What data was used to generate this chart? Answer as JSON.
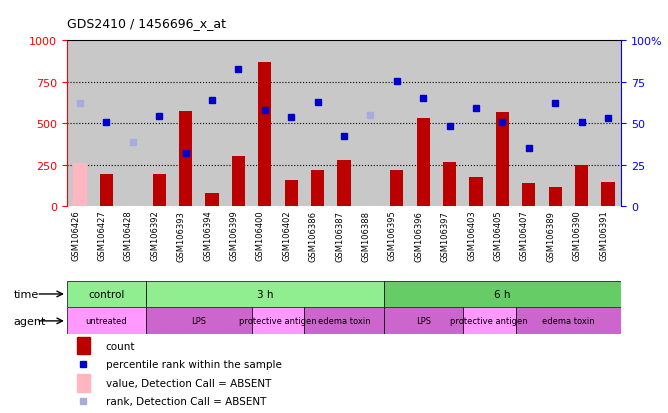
{
  "title": "GDS2410 / 1456696_x_at",
  "samples": [
    "GSM106426",
    "GSM106427",
    "GSM106428",
    "GSM106392",
    "GSM106393",
    "GSM106394",
    "GSM106399",
    "GSM106400",
    "GSM106402",
    "GSM106386",
    "GSM106387",
    "GSM106388",
    "GSM106395",
    "GSM106396",
    "GSM106397",
    "GSM106403",
    "GSM106405",
    "GSM106407",
    "GSM106389",
    "GSM106390",
    "GSM106391"
  ],
  "count_values": [
    260,
    195,
    0,
    195,
    575,
    80,
    300,
    870,
    160,
    215,
    275,
    0,
    215,
    530,
    265,
    175,
    570,
    140,
    115,
    250,
    145
  ],
  "count_absent": [
    true,
    false,
    true,
    false,
    false,
    false,
    false,
    false,
    false,
    false,
    false,
    true,
    false,
    false,
    false,
    false,
    false,
    false,
    false,
    false,
    false
  ],
  "percentile_values": [
    620,
    510,
    385,
    545,
    320,
    640,
    830,
    580,
    540,
    630,
    420,
    550,
    755,
    650,
    485,
    590,
    510,
    350,
    625,
    510,
    530
  ],
  "percentile_absent": [
    true,
    false,
    true,
    false,
    false,
    false,
    false,
    false,
    false,
    false,
    false,
    true,
    false,
    false,
    false,
    false,
    false,
    false,
    false,
    false,
    false
  ],
  "ylim_left": [
    0,
    1000
  ],
  "ylim_right": [
    0,
    100
  ],
  "yticks_left": [
    0,
    250,
    500,
    750,
    1000
  ],
  "yticks_right": [
    0,
    25,
    50,
    75,
    100
  ],
  "time_groups": [
    {
      "label": "control",
      "start": 0,
      "end": 3,
      "color": "#90EE90"
    },
    {
      "label": "3 h",
      "start": 3,
      "end": 12,
      "color": "#90EE90"
    },
    {
      "label": "6 h",
      "start": 12,
      "end": 21,
      "color": "#66CC66"
    }
  ],
  "agent_groups": [
    {
      "label": "untreated",
      "start": 0,
      "end": 3,
      "color": "#FF99FF"
    },
    {
      "label": "LPS",
      "start": 3,
      "end": 7,
      "color": "#CC66CC"
    },
    {
      "label": "protective antigen",
      "start": 7,
      "end": 9,
      "color": "#FF99FF"
    },
    {
      "label": "edema toxin",
      "start": 9,
      "end": 12,
      "color": "#CC66CC"
    },
    {
      "label": "LPS",
      "start": 12,
      "end": 15,
      "color": "#CC66CC"
    },
    {
      "label": "protective antigen",
      "start": 15,
      "end": 17,
      "color": "#FF99FF"
    },
    {
      "label": "edema toxin",
      "start": 17,
      "end": 21,
      "color": "#CC66CC"
    }
  ],
  "bar_color_present": "#BB0000",
  "bar_color_absent": "#FFB6C1",
  "dot_color_present": "#0000CC",
  "dot_color_absent": "#AAAADD",
  "bg_color": "#C8C8C8",
  "plot_bg": "#C8C8C8"
}
